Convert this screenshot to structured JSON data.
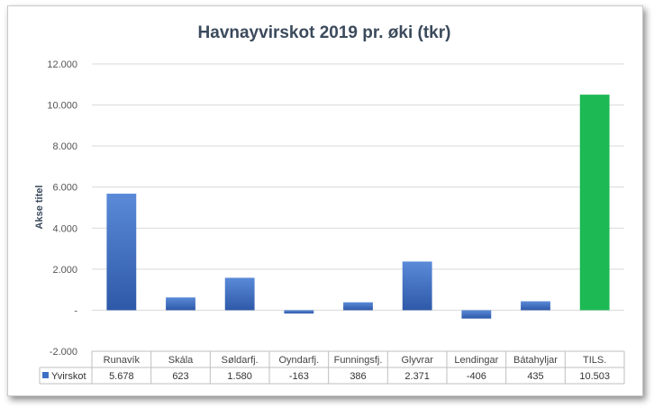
{
  "chart_data": {
    "type": "bar",
    "title": "Havnayvirskot 2019 pr. øki (tkr)",
    "ylabel": "Akse titel",
    "xlabel": "",
    "ylim": [
      -2000,
      12000
    ],
    "yticks": [
      -2000,
      0,
      2000,
      4000,
      6000,
      8000,
      10000,
      12000
    ],
    "ytick_labels": [
      "-2.000",
      "-",
      "2.000",
      "4.000",
      "6.000",
      "8.000",
      "10.000",
      "12.000"
    ],
    "grid": true,
    "legend": "data-table",
    "categories": [
      "Runavík",
      "Skála",
      "Søldarfj.",
      "Oyndarfj.",
      "Funningsfj.",
      "Glyvrar",
      "Lendingar",
      "Bátahyljar",
      "TILS."
    ],
    "series": [
      {
        "name": "Yvirskot",
        "values": [
          5678,
          623,
          1580,
          -163,
          386,
          2371,
          -406,
          435,
          10503
        ],
        "value_labels": [
          "5.678",
          "623",
          "1.580",
          "-163",
          "386",
          "2.371",
          "-406",
          "435",
          "10.503"
        ]
      }
    ],
    "colors": {
      "bar": "#3f6fc4",
      "bar_light": "#5a8ad8",
      "bar_dark": "#2e59a8",
      "total_bar": "#1db954",
      "grid": "#d9d9d9",
      "table_line": "#bfbfbf"
    },
    "highlight_category": "TILS."
  }
}
